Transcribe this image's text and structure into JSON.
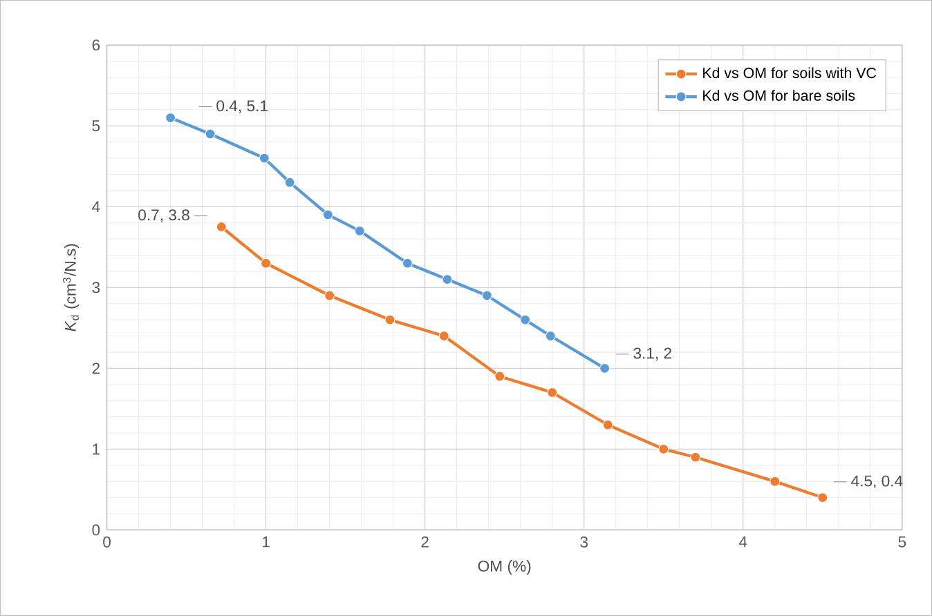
{
  "chart_data": {
    "type": "line",
    "xlabel": "OM (%)",
    "ylabel": "*K*$_{d}$ (cm$^{3}$/N.s)",
    "xlim": [
      0,
      5
    ],
    "xticks": [
      0,
      1,
      2,
      3,
      4,
      5
    ],
    "ylim": [
      0,
      6
    ],
    "yticks": [
      0,
      1,
      2,
      3,
      4,
      5,
      6
    ],
    "grid": true,
    "legend": "top right",
    "marker": "circle",
    "line_style": "solid",
    "series": [
      {
        "name": "Kd vs OM for soils with VC",
        "color": "#ed7d31",
        "x": [
          0.72,
          1.0,
          1.4,
          1.78,
          2.12,
          2.47,
          2.8,
          3.15,
          3.5,
          3.7,
          4.2,
          4.5
        ],
        "values": [
          3.75,
          3.3,
          2.9,
          2.6,
          2.4,
          1.9,
          1.7,
          1.3,
          1.0,
          0.9,
          0.6,
          0.4
        ]
      },
      {
        "name": "Kd vs OM for bare soils",
        "color": "#5b9bd5",
        "x": [
          0.4,
          0.65,
          0.99,
          1.15,
          1.39,
          1.59,
          1.89,
          2.14,
          2.39,
          2.63,
          2.79,
          3.13
        ],
        "values": [
          5.1,
          4.9,
          4.6,
          4.3,
          3.9,
          3.7,
          3.3,
          3.1,
          2.9,
          2.6,
          2.4,
          2.0
        ]
      }
    ],
    "annotations": [
      {
        "text": "0.4, 5.1",
        "x": 0.4,
        "y": 5.1
      },
      {
        "text": "0.7, 3.8",
        "x": 0.72,
        "y": 3.75
      },
      {
        "text": "3.1, 2",
        "x": 3.13,
        "y": 2.0
      },
      {
        "text": "4.5, 0.4",
        "x": 4.5,
        "y": 0.4
      }
    ]
  }
}
